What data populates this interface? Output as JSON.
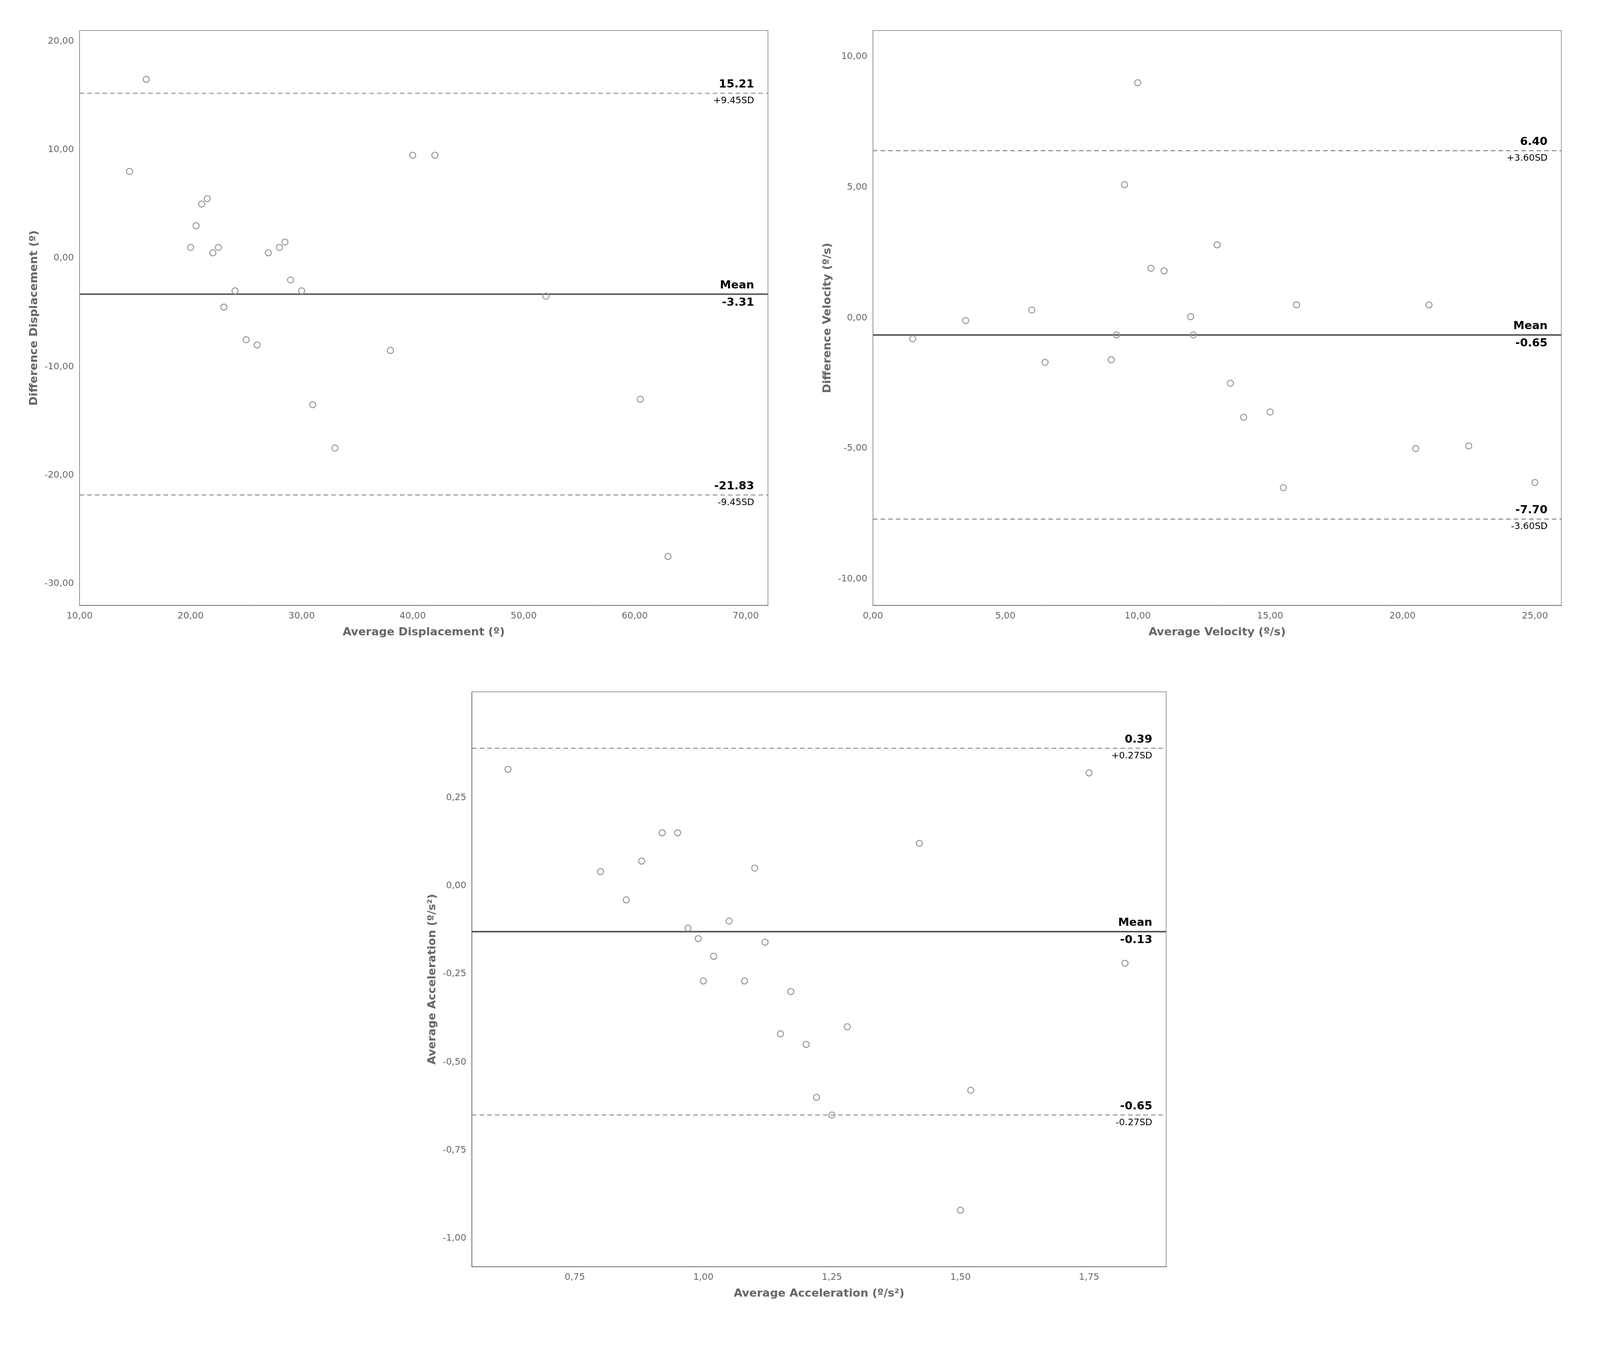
{
  "chart_data": [
    {
      "type": "scatter",
      "x": [
        14.5,
        16.0,
        20.0,
        20.5,
        21.0,
        21.5,
        22.0,
        22.5,
        23.0,
        24.0,
        25.0,
        26.0,
        27.0,
        28.0,
        28.5,
        29.0,
        30.0,
        31.0,
        33.0,
        38.0,
        40.0,
        42.0,
        52.0,
        60.5,
        63.0
      ],
      "y": [
        8.0,
        16.5,
        1.0,
        3.0,
        5.0,
        5.5,
        0.5,
        1.0,
        -4.5,
        -3.0,
        -7.5,
        -8.0,
        0.5,
        1.0,
        1.5,
        -2.0,
        -3.0,
        -13.5,
        -17.5,
        -8.5,
        9.5,
        9.5,
        -3.5,
        -13.0,
        -27.5
      ],
      "color": "#999999",
      "marker": "circle",
      "xlim": [
        10.0,
        72.0
      ],
      "ylim": [
        -32.0,
        21.0
      ],
      "xticks": [
        {
          "value": 10,
          "label": "10,00"
        },
        {
          "value": 20,
          "label": "20,00"
        },
        {
          "value": 30,
          "label": "30,00"
        },
        {
          "value": 40,
          "label": "40,00"
        },
        {
          "value": 50,
          "label": "50,00"
        },
        {
          "value": 60,
          "label": "60,00"
        },
        {
          "value": 70,
          "label": "70,00"
        }
      ],
      "yticks": [
        {
          "value": 20,
          "label": "20,00"
        },
        {
          "value": 10,
          "label": "10,00"
        },
        {
          "value": 0,
          "label": "0,00"
        },
        {
          "value": -10,
          "label": "-10,00"
        },
        {
          "value": -20,
          "label": "-20,00"
        },
        {
          "value": -30,
          "label": "-30,00"
        }
      ],
      "xlabel": "Average Displacement (º)",
      "ylabel": "Difference Displacement (º)",
      "grid": false,
      "hlines": [
        {
          "value": 15.21,
          "label_above": "15.21",
          "label_below": "+9.45SD",
          "line_style": "dashed",
          "color": "#888888"
        },
        {
          "value": -3.31,
          "label_above": "Mean",
          "label_below": "-3.31",
          "line_style": "solid",
          "color": "#555555"
        },
        {
          "value": -21.83,
          "label_above": "-21.83",
          "label_below": "-9.45SD",
          "line_style": "dashed",
          "color": "#888888"
        }
      ]
    },
    {
      "type": "scatter",
      "x": [
        1.5,
        3.5,
        6.0,
        6.5,
        9.0,
        9.2,
        9.5,
        10.0,
        10.5,
        11.0,
        12.0,
        12.1,
        13.0,
        13.5,
        14.0,
        15.0,
        15.5,
        16.0,
        20.5,
        21.0,
        22.5,
        25.0
      ],
      "y": [
        -0.8,
        -0.1,
        0.3,
        -1.7,
        -1.6,
        -0.65,
        5.1,
        9.0,
        1.9,
        1.8,
        0.05,
        -0.65,
        2.8,
        -2.5,
        -3.8,
        -3.6,
        -6.5,
        0.5,
        -5.0,
        0.5,
        -4.9,
        -6.3
      ],
      "color": "#999999",
      "marker": "circle",
      "xlim": [
        0.0,
        26.0
      ],
      "ylim": [
        -11.0,
        11.0
      ],
      "xticks": [
        {
          "value": 0,
          "label": "0,00"
        },
        {
          "value": 5,
          "label": "5,00"
        },
        {
          "value": 10,
          "label": "10,00"
        },
        {
          "value": 15,
          "label": "15,00"
        },
        {
          "value": 20,
          "label": "20,00"
        },
        {
          "value": 25,
          "label": "25,00"
        }
      ],
      "yticks": [
        {
          "value": 10,
          "label": "10,00"
        },
        {
          "value": 5,
          "label": "5,00"
        },
        {
          "value": 0,
          "label": "0,00"
        },
        {
          "value": -5,
          "label": "-5,00"
        },
        {
          "value": -10,
          "label": "-10,00"
        }
      ],
      "xlabel": "Average Velocity (º/s)",
      "ylabel": "Difference Velocity (º/s)",
      "grid": false,
      "hlines": [
        {
          "value": 6.4,
          "label_above": "6.40",
          "label_below": "+3.60SD",
          "line_style": "dashed",
          "color": "#888888"
        },
        {
          "value": -0.65,
          "label_above": "Mean",
          "label_below": "-0.65",
          "line_style": "solid",
          "color": "#555555"
        },
        {
          "value": -7.7,
          "label_above": "-7.70",
          "label_below": "-3.60SD",
          "line_style": "dashed",
          "color": "#888888"
        }
      ]
    },
    {
      "type": "scatter",
      "x": [
        0.62,
        0.8,
        0.85,
        0.88,
        0.92,
        0.95,
        0.97,
        0.99,
        1.0,
        1.02,
        1.05,
        1.08,
        1.1,
        1.12,
        1.15,
        1.17,
        1.2,
        1.22,
        1.25,
        1.28,
        1.42,
        1.5,
        1.52,
        1.75,
        1.82
      ],
      "y": [
        0.33,
        0.04,
        -0.04,
        0.07,
        0.15,
        0.15,
        -0.12,
        -0.15,
        -0.27,
        -0.2,
        -0.1,
        -0.27,
        0.05,
        -0.16,
        -0.42,
        -0.3,
        -0.45,
        -0.6,
        -0.65,
        -0.4,
        0.12,
        -0.92,
        -0.58,
        0.32,
        -0.22
      ],
      "color": "#999999",
      "marker": "circle",
      "xlim": [
        0.55,
        1.9
      ],
      "ylim": [
        -1.08,
        0.55
      ],
      "xticks": [
        {
          "value": 0.75,
          "label": "0,75"
        },
        {
          "value": 1.0,
          "label": "1,00"
        },
        {
          "value": 1.25,
          "label": "1,25"
        },
        {
          "value": 1.5,
          "label": "1,50"
        },
        {
          "value": 1.75,
          "label": "1,75"
        }
      ],
      "yticks": [
        {
          "value": 0.25,
          "label": "0,25"
        },
        {
          "value": 0.0,
          "label": "0,00"
        },
        {
          "value": -0.25,
          "label": "-0,25"
        },
        {
          "value": -0.5,
          "label": "-0,50"
        },
        {
          "value": -0.75,
          "label": "-0,75"
        },
        {
          "value": -1.0,
          "label": "-1,00"
        }
      ],
      "xlabel": "Average Acceleration (º/s²)",
      "ylabel": "Average Acceleration (º/s²)",
      "grid": false,
      "hlines": [
        {
          "value": 0.39,
          "label_above": "0.39",
          "label_below": "+0.27SD",
          "line_style": "dashed",
          "color": "#888888"
        },
        {
          "value": -0.13,
          "label_above": "Mean",
          "label_below": "-0.13",
          "line_style": "solid",
          "color": "#555555"
        },
        {
          "value": -0.65,
          "label_above": "-0.65",
          "label_below": "-0.27SD",
          "line_style": "dashed",
          "color": "#888888"
        }
      ]
    }
  ]
}
